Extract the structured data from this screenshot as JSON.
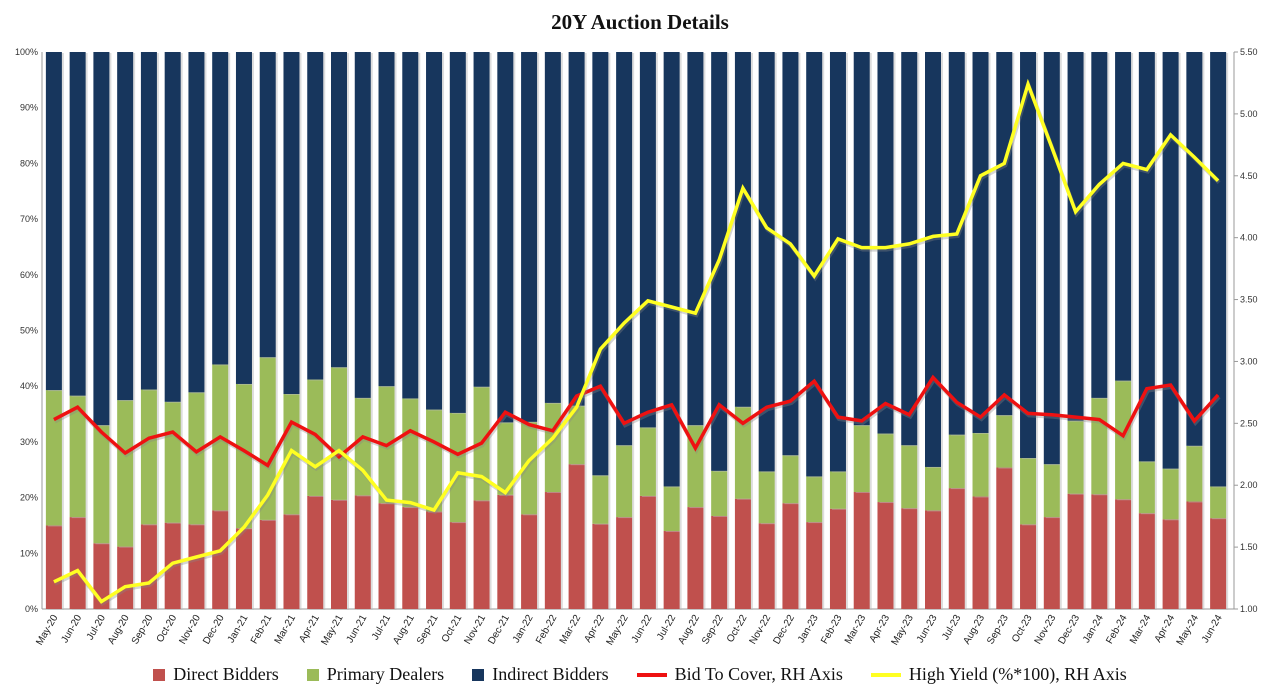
{
  "chart_data": {
    "type": "bar",
    "title": "20Y Auction Details",
    "stacked": true,
    "xlabel": "",
    "ylabel": "",
    "ylim": [
      0,
      100
    ],
    "y2lim": [
      1.0,
      5.5
    ],
    "left_ticks": [
      "0%",
      "10%",
      "20%",
      "30%",
      "40%",
      "50%",
      "60%",
      "70%",
      "80%",
      "90%",
      "100%"
    ],
    "right_ticks": [
      "1.00",
      "1.50",
      "2.00",
      "2.50",
      "3.00",
      "3.50",
      "4.00",
      "4.50",
      "5.00",
      "5.50"
    ],
    "legend_position": "bottom",
    "categories": [
      "May-20",
      "Jun-20",
      "Jul-20",
      "Aug-20",
      "Sep-20",
      "Oct-20",
      "Nov-20",
      "Dec-20",
      "Jan-21",
      "Feb-21",
      "Mar-21",
      "Apr-21",
      "May-21",
      "Jun-21",
      "Jul-21",
      "Aug-21",
      "Sep-21",
      "Oct-21",
      "Nov-21",
      "Dec-21",
      "Jan-22",
      "Feb-22",
      "Mar-22",
      "Apr-22",
      "May-22",
      "Jun-22",
      "Jul-22",
      "Aug-22",
      "Sep-22",
      "Oct-22",
      "Nov-22",
      "Dec-22",
      "Jan-23",
      "Feb-23",
      "Mar-23",
      "Apr-23",
      "May-23",
      "Jun-23",
      "Jul-23",
      "Aug-23",
      "Sep-23",
      "Oct-23",
      "Nov-23",
      "Dec-23",
      "Jan-24",
      "Feb-24",
      "Mar-24",
      "Apr-24",
      "May-24",
      "Jun-24"
    ],
    "series": [
      {
        "name": "Direct Bidders",
        "type": "bar",
        "axis": "left",
        "color": "#c0504d",
        "values": [
          15.0,
          16.5,
          11.8,
          11.2,
          15.2,
          15.5,
          15.2,
          17.7,
          14.5,
          16.0,
          17.0,
          20.3,
          19.6,
          20.4,
          19.0,
          18.3,
          17.5,
          15.6,
          19.5,
          20.5,
          17.0,
          21.0,
          26.0,
          15.3,
          16.5,
          20.3,
          14.0,
          18.3,
          16.7,
          19.8,
          15.4,
          19.0,
          15.6,
          18.0,
          21.0,
          19.2,
          18.1,
          17.7,
          21.7,
          20.2,
          25.4,
          15.2,
          16.5,
          20.7,
          20.6,
          19.7,
          17.2,
          16.1,
          19.3,
          16.3
        ]
      },
      {
        "name": "Primary Dealers",
        "type": "bar",
        "axis": "left",
        "color": "#9bbb59",
        "values": [
          24.3,
          21.8,
          21.2,
          26.3,
          24.2,
          21.7,
          23.7,
          26.2,
          25.9,
          29.2,
          21.6,
          20.9,
          23.8,
          17.5,
          21.0,
          19.5,
          18.3,
          19.6,
          20.4,
          13.0,
          16.6,
          16.0,
          10.5,
          8.7,
          12.9,
          12.3,
          8.0,
          14.7,
          8.1,
          16.5,
          9.3,
          8.6,
          8.2,
          6.7,
          12.0,
          12.3,
          11.3,
          7.8,
          9.6,
          11.4,
          9.4,
          11.9,
          9.5,
          13.1,
          17.3,
          21.3,
          9.3,
          9.1,
          10.0,
          5.7
        ]
      },
      {
        "name": "Indirect Bidders",
        "type": "bar",
        "axis": "left",
        "color": "#17365d",
        "values": [
          60.7,
          61.7,
          67.0,
          62.5,
          60.6,
          62.8,
          61.1,
          56.1,
          59.6,
          54.8,
          61.4,
          58.8,
          56.6,
          62.1,
          60.0,
          62.2,
          64.2,
          64.8,
          60.1,
          66.5,
          66.4,
          63.0,
          63.5,
          76.0,
          70.6,
          67.4,
          78.0,
          67.0,
          75.2,
          63.7,
          75.3,
          72.4,
          76.2,
          75.3,
          67.0,
          68.5,
          70.6,
          74.5,
          68.7,
          68.4,
          65.2,
          72.9,
          74.0,
          66.2,
          62.1,
          59.0,
          73.5,
          74.8,
          70.7,
          78.0
        ]
      },
      {
        "name": "Bid To Cover, RH Axis",
        "type": "line",
        "axis": "right",
        "color": "#ee1111",
        "values": [
          2.53,
          2.63,
          2.43,
          2.26,
          2.38,
          2.43,
          2.27,
          2.39,
          2.28,
          2.16,
          2.51,
          2.41,
          2.23,
          2.39,
          2.32,
          2.44,
          2.35,
          2.25,
          2.34,
          2.59,
          2.49,
          2.44,
          2.72,
          2.8,
          2.5,
          2.59,
          2.65,
          2.3,
          2.65,
          2.5,
          2.63,
          2.68,
          2.84,
          2.55,
          2.52,
          2.66,
          2.57,
          2.87,
          2.67,
          2.55,
          2.73,
          2.58,
          2.57,
          2.55,
          2.53,
          2.4,
          2.78,
          2.81,
          2.52,
          2.73
        ]
      },
      {
        "name": "High Yield (%*100), RH Axis",
        "type": "line",
        "axis": "right",
        "color": "#ffff22",
        "values": [
          1.22,
          1.31,
          1.06,
          1.18,
          1.21,
          1.37,
          1.42,
          1.47,
          1.66,
          1.92,
          2.28,
          2.15,
          2.28,
          2.12,
          1.88,
          1.86,
          1.8,
          2.1,
          2.07,
          1.94,
          2.2,
          2.38,
          2.63,
          3.1,
          3.31,
          3.49,
          3.44,
          3.39,
          3.82,
          4.4,
          4.08,
          3.95,
          3.69,
          3.99,
          3.92,
          3.92,
          3.95,
          4.01,
          4.03,
          4.5,
          4.6,
          5.24,
          4.73,
          4.21,
          4.43,
          4.6,
          4.55,
          4.83,
          4.65,
          4.46
        ]
      }
    ]
  }
}
